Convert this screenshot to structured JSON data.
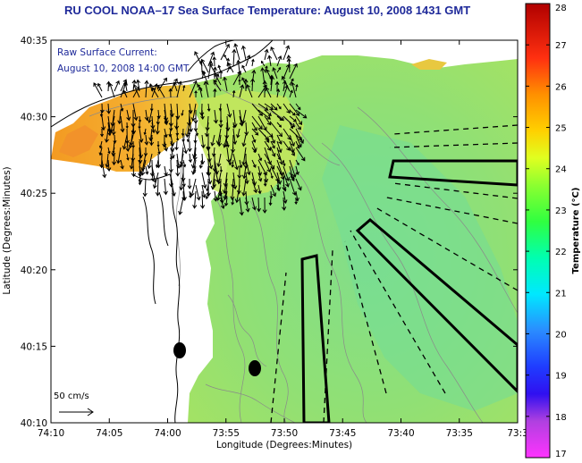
{
  "title": "RU COOL  NOAA–17  Sea Surface Temperature:  August 10, 2008 1431 GMT",
  "overlay_note": {
    "line1": "Raw Surface Current:",
    "line2": "August 10, 2008 14:00 GMT"
  },
  "scale_label": "50 cm/s",
  "colors": {
    "title": "#1f2a9a",
    "land": "#ffffff",
    "sst_main": "#96e070",
    "sst_warm": "#f4a028",
    "arrows": "#000000"
  },
  "chart_data": {
    "type": "heatmap",
    "title": "RU COOL  NOAA–17  Sea Surface Temperature:  August 10, 2008 1431 GMT",
    "xlabel": "Longitude (Degrees:Minutes)",
    "ylabel": "Latitude (Degrees:Minutes)",
    "x_ticks": [
      "74:10",
      "74:05",
      "74:00",
      "73:55",
      "73:50",
      "73:45",
      "73:40",
      "73:35",
      "73:3"
    ],
    "y_ticks": [
      "40:10",
      "40:15",
      "40:20",
      "40:25",
      "40:30",
      "40:35"
    ],
    "xlim_deg": [
      -74.1667,
      -73.5
    ],
    "ylim_deg": [
      40.1667,
      40.5833
    ],
    "colorbar": {
      "label": "Temperature (°C)",
      "range": [
        17,
        28
      ],
      "ticks": [
        "17",
        "18",
        "19",
        "20",
        "21",
        "22",
        "23",
        "24",
        "25",
        "26",
        "27",
        "28"
      ]
    },
    "scale_vector": {
      "label": "50 cm/s",
      "value": 50,
      "unit": "cm/s"
    },
    "approx_fields": {
      "offshore_sst_c": 23.5,
      "nearshore_warm_sst_c": 24.8
    }
  }
}
